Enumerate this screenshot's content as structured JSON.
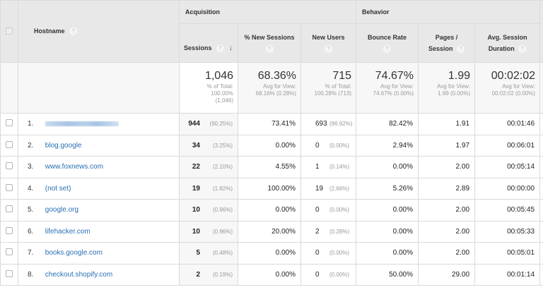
{
  "header": {
    "hostname_label": "Hostname",
    "help_glyph": "?",
    "sort_glyph": "↓",
    "groups": {
      "acquisition": "Acquisition",
      "behavior": "Behavior"
    },
    "columns": {
      "sessions": "Sessions",
      "pct_new_sessions": "% New Sessions",
      "new_users": "New Users",
      "bounce_rate": "Bounce Rate",
      "pages_line1": "Pages /",
      "pages_line2": "Session",
      "duration_line1": "Avg. Session",
      "duration_line2": "Duration"
    }
  },
  "totals": {
    "sessions": {
      "value": "1,046",
      "l1": "% of Total:",
      "l2": "100.00%",
      "l3": "(1,046)"
    },
    "pct_new_sessions": {
      "value": "68.36%",
      "l1": "Avg for View:",
      "l2": "68.16% (0.28%)"
    },
    "new_users": {
      "value": "715",
      "l1": "% of Total:",
      "l2": "100.28% (713)"
    },
    "bounce_rate": {
      "value": "74.67%",
      "l1": "Avg for View:",
      "l2": "74.67% (0.00%)"
    },
    "pages_per_session": {
      "value": "1.99",
      "l1": "Avg for View:",
      "l2": "1.99 (0.00%)"
    },
    "avg_duration": {
      "value": "00:02:02",
      "l1": "Avg for View:",
      "l2": "00:02:02 (0.00%)"
    }
  },
  "rows": [
    {
      "index": "1.",
      "hostname": "",
      "hostname_redacted": true,
      "sessions": "944",
      "sessions_pct": "(90.25%)",
      "pct_new": "73.41%",
      "new_users": "693",
      "new_users_pct": "(96.92%)",
      "bounce": "82.42%",
      "pages": "1.91",
      "duration": "00:01:46"
    },
    {
      "index": "2.",
      "hostname": "blog.google",
      "sessions": "34",
      "sessions_pct": "(3.25%)",
      "pct_new": "0.00%",
      "new_users": "0",
      "new_users_pct": "(0.00%)",
      "bounce": "2.94%",
      "pages": "1.97",
      "duration": "00:06:01"
    },
    {
      "index": "3.",
      "hostname": "www.foxnews.com",
      "sessions": "22",
      "sessions_pct": "(2.10%)",
      "pct_new": "4.55%",
      "new_users": "1",
      "new_users_pct": "(0.14%)",
      "bounce": "0.00%",
      "pages": "2.00",
      "duration": "00:05:14"
    },
    {
      "index": "4.",
      "hostname": "(not set)",
      "sessions": "19",
      "sessions_pct": "(1.82%)",
      "pct_new": "100.00%",
      "new_users": "19",
      "new_users_pct": "(2.66%)",
      "bounce": "5.26%",
      "pages": "2.89",
      "duration": "00:00:00"
    },
    {
      "index": "5.",
      "hostname": "google.org",
      "sessions": "10",
      "sessions_pct": "(0.96%)",
      "pct_new": "0.00%",
      "new_users": "0",
      "new_users_pct": "(0.00%)",
      "bounce": "0.00%",
      "pages": "2.00",
      "duration": "00:05:45"
    },
    {
      "index": "6.",
      "hostname": "lifehacker.com",
      "sessions": "10",
      "sessions_pct": "(0.96%)",
      "pct_new": "20.00%",
      "new_users": "2",
      "new_users_pct": "(0.28%)",
      "bounce": "0.00%",
      "pages": "2.00",
      "duration": "00:05:33"
    },
    {
      "index": "7.",
      "hostname": "books.google.com",
      "sessions": "5",
      "sessions_pct": "(0.48%)",
      "pct_new": "0.00%",
      "new_users": "0",
      "new_users_pct": "(0.00%)",
      "bounce": "0.00%",
      "pages": "2.00",
      "duration": "00:05:01"
    },
    {
      "index": "8.",
      "hostname": "checkout.shopify.com",
      "sessions": "2",
      "sessions_pct": "(0.19%)",
      "pct_new": "0.00%",
      "new_users": "0",
      "new_users_pct": "(0.00%)",
      "bounce": "50.00%",
      "pages": "29.00",
      "duration": "00:01:14"
    }
  ],
  "colors": {
    "header_bg": "#e8e8e8",
    "totals_bg": "#f7f7f7",
    "link": "#2a6fb5",
    "border": "#dadada",
    "muted": "#999999"
  }
}
